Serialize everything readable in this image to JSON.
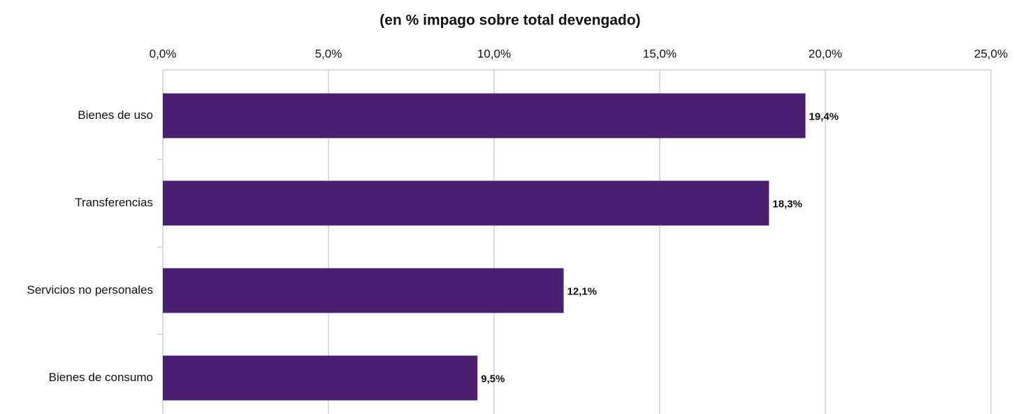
{
  "chart_data": {
    "type": "barh",
    "title": "(en % impago sobre total devengado)",
    "categories": [
      "Bienes de uso",
      "Transferencias",
      "Servicios no personales",
      "Bienes de consumo"
    ],
    "values": [
      19.4,
      18.3,
      12.1,
      9.5
    ],
    "value_labels": [
      "19,4%",
      "18,3%",
      "12,1%",
      "9,5%"
    ],
    "color": "#4b1f6f",
    "xlim": [
      0,
      25
    ],
    "xticks": [
      {
        "value": 0,
        "label": "0,0%"
      },
      {
        "value": 5,
        "label": "5,0%"
      },
      {
        "value": 10,
        "label": "10,0%"
      },
      {
        "value": 15,
        "label": "15,0%"
      },
      {
        "value": 20,
        "label": "20,0%"
      },
      {
        "value": 25,
        "label": "25,0%"
      }
    ],
    "grid": true
  }
}
